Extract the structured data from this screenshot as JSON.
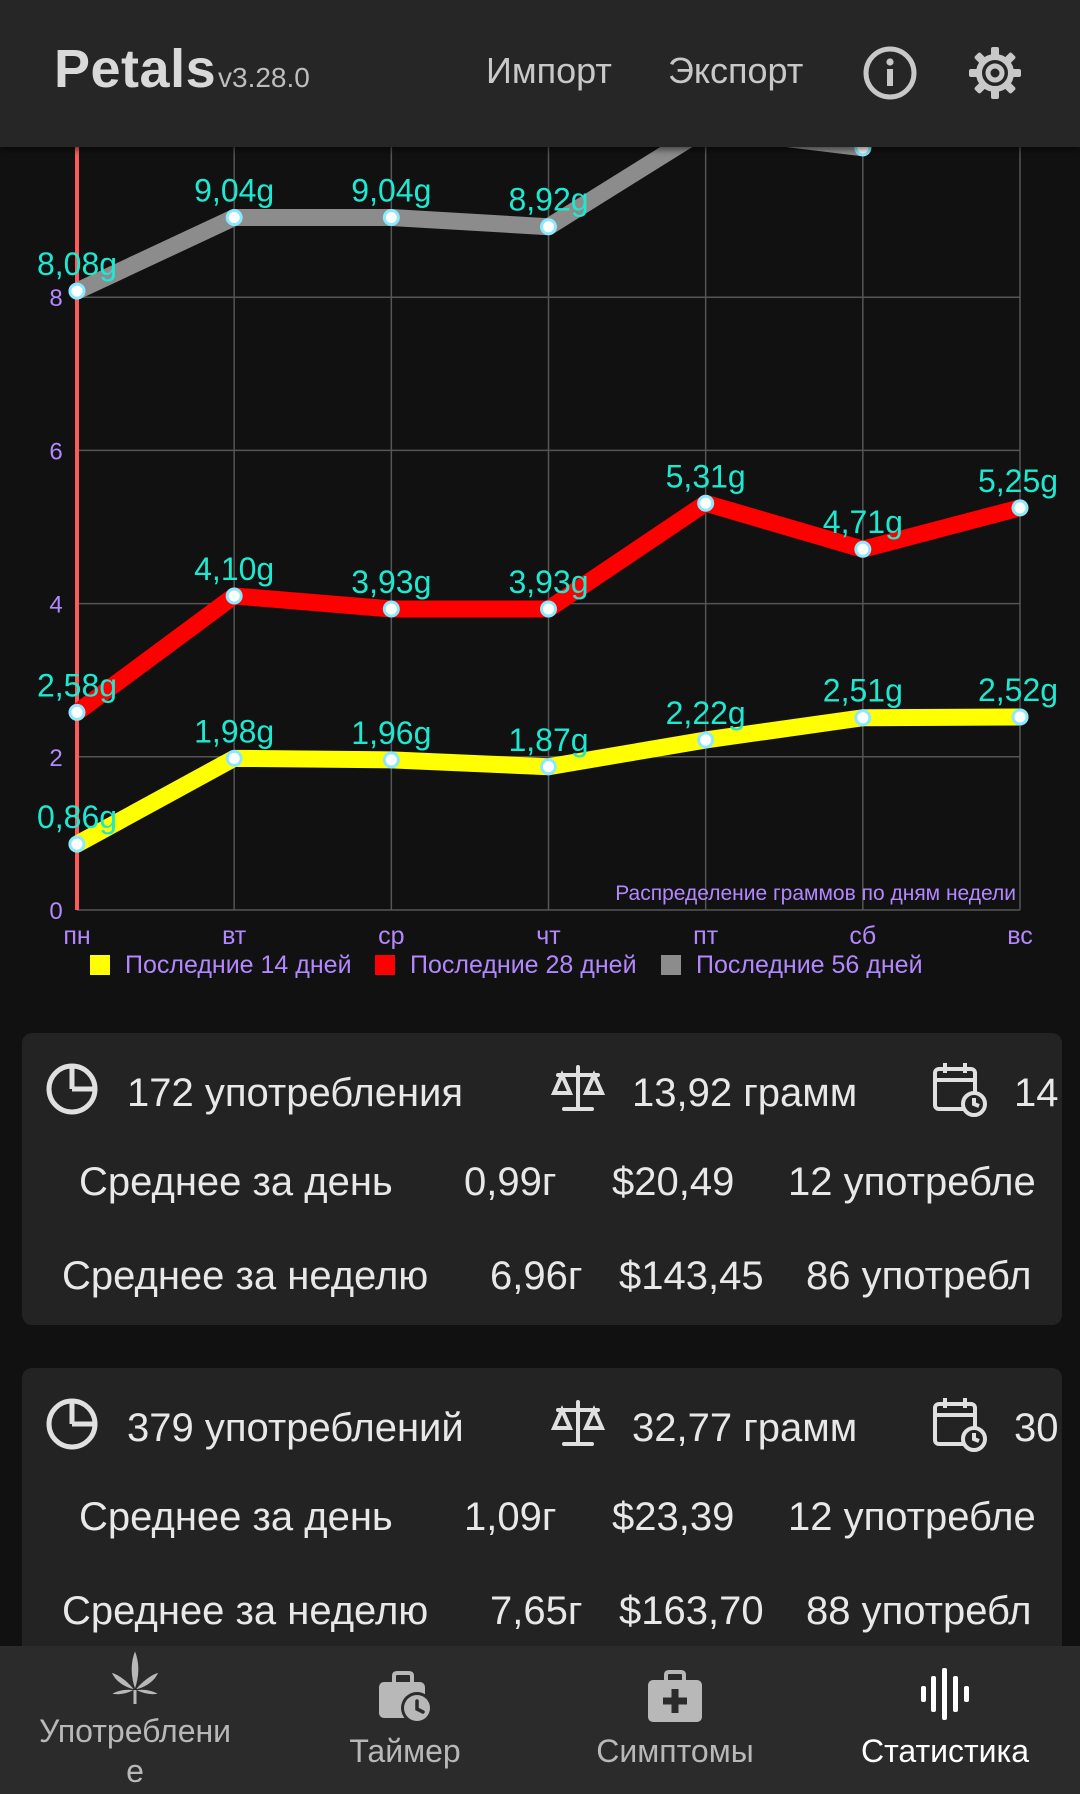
{
  "header": {
    "title": "Petals",
    "version": "v3.28.0",
    "import_label": "Импорт",
    "export_label": "Экспорт"
  },
  "chart_data": {
    "type": "line",
    "title": "Распределение граммов по дням недели",
    "categories": [
      "пн",
      "вт",
      "ср",
      "чт",
      "пт",
      "сб",
      "вс"
    ],
    "y_ticks": [
      "0",
      "2",
      "4",
      "6",
      "8"
    ],
    "ylim": [
      0,
      10
    ],
    "grid": true,
    "legend_position": "bottom",
    "series": [
      {
        "name": "Последние 14 дней",
        "color": "#ffff00",
        "values": [
          0.86,
          1.98,
          1.96,
          1.87,
          2.22,
          2.51,
          2.52
        ],
        "labels": [
          "0,86g",
          "1,98g",
          "1,96g",
          "1,87g",
          "2,22g",
          "2,51g",
          "2,52g"
        ]
      },
      {
        "name": "Последние 28 дней",
        "color": "#ff0000",
        "values": [
          2.58,
          4.1,
          3.93,
          3.93,
          5.31,
          4.71,
          5.25
        ],
        "labels": [
          "2,58g",
          "4,10g",
          "3,93g",
          "3,93g",
          "5,31g",
          "4,71g",
          "5,25g"
        ]
      },
      {
        "name": "Последние 56 дней",
        "color": "#8c8c8c",
        "values": [
          8.08,
          9.04,
          9.04,
          8.92,
          10.2,
          9.95,
          null
        ],
        "labels": [
          "8,08g",
          "9,04g",
          "9,04g",
          "8,92g",
          "",
          "",
          ""
        ]
      }
    ],
    "label_color": "#1de9d0",
    "axis_label_color": "#b388ff"
  },
  "cards": [
    {
      "uses": "172 употребления",
      "grams": "13,92 грамм",
      "days": "14",
      "day_label": "Среднее за день",
      "day_grams": "0,99г",
      "day_money": "$20,49",
      "day_uses": "12 употребле",
      "week_label": "Среднее за неделю",
      "week_grams": "6,96г",
      "week_money": "$143,45",
      "week_uses": "86 употребл"
    },
    {
      "uses": "379 употреблений",
      "grams": "32,77 грамм",
      "days": "30",
      "day_label": "Среднее за день",
      "day_grams": "1,09г",
      "day_money": "$23,39",
      "day_uses": "12 употребле",
      "week_label": "Среднее за неделю",
      "week_grams": "7,65г",
      "week_money": "$163,70",
      "week_uses": "88 употребл"
    }
  ],
  "nav": {
    "consumption_line1": "Употреблени",
    "consumption_line2": "е",
    "timer": "Таймер",
    "symptoms": "Симптомы",
    "stats": "Статистика"
  }
}
